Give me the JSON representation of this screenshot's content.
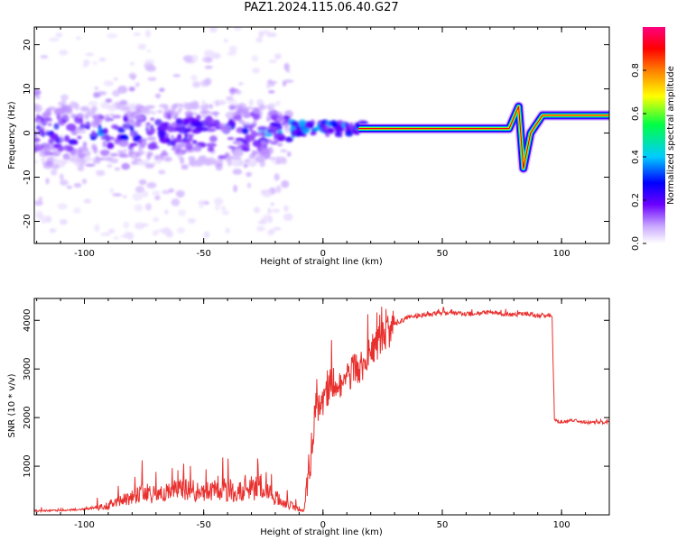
{
  "chart_title": "PAZ1.2024.115.06.40.G27",
  "chart_data": [
    {
      "type": "heatmap",
      "title": "PAZ1.2024.115.06.40.G27",
      "xlabel": "Height of straight line (km)",
      "ylabel": "Frequency (Hz)",
      "xlim": [
        -121,
        120
      ],
      "ylim": [
        -25,
        24
      ],
      "x_ticks": [
        -100,
        -50,
        0,
        50,
        100
      ],
      "y_ticks": [
        -20,
        -10,
        0,
        10,
        20
      ],
      "grid": false,
      "colorbar": {
        "label": "Normalized spectral amplitude",
        "range": [
          0,
          1
        ],
        "ticks": [
          "0.0",
          "0.2",
          "0.4",
          "0.6",
          "0.8"
        ],
        "colormap": [
          "#ffffff",
          "#c9a8ff",
          "#6b00ff",
          "#0000ff",
          "#00ccff",
          "#00ff44",
          "#ffff00",
          "#ff7f00",
          "#ff0000",
          "#ff0080"
        ]
      },
      "ridge": [
        {
          "x": 15,
          "y": 1.0
        },
        {
          "x": 78,
          "y": 1.0
        },
        {
          "x": 82,
          "y": 6.0
        },
        {
          "x": 84,
          "y": -8.0
        },
        {
          "x": 87,
          "y": 0.0
        },
        {
          "x": 92,
          "y": 4.0
        },
        {
          "x": 120,
          "y": 4.0
        }
      ]
    },
    {
      "type": "line",
      "xlabel": "Height of straight line (km)",
      "ylabel": "SNR (10 * v/v)",
      "xlim": [
        -121,
        120
      ],
      "ylim": [
        0,
        4450
      ],
      "x_ticks": [
        -100,
        -50,
        0,
        50,
        100
      ],
      "y_ticks": [
        1000,
        2000,
        3000,
        4000
      ],
      "color": "#e8302e",
      "series": [
        {
          "x": [
            -121,
            -110,
            -100,
            -95,
            -90,
            -85,
            -80,
            -75,
            -70,
            -65,
            -60,
            -55,
            -50,
            -45,
            -40,
            -35,
            -30,
            -25,
            -20,
            -15,
            -12,
            -10,
            -8,
            -5,
            -3,
            0,
            3,
            5,
            8,
            10,
            13,
            15,
            18,
            20,
            23,
            25,
            28,
            30,
            35,
            40,
            45,
            50,
            55,
            60,
            65,
            70,
            75,
            80,
            85,
            90,
            95,
            96,
            97,
            100,
            105,
            110,
            115,
            120
          ],
          "y": [
            80,
            90,
            120,
            150,
            200,
            280,
            380,
            450,
            420,
            480,
            520,
            500,
            450,
            500,
            480,
            510,
            520,
            600,
            350,
            230,
            150,
            100,
            90,
            1300,
            2200,
            2300,
            2600,
            2700,
            2550,
            2750,
            3050,
            3000,
            3150,
            3350,
            3550,
            3650,
            3800,
            3900,
            4050,
            4100,
            4120,
            4150,
            4150,
            4130,
            4150,
            4160,
            4130,
            4120,
            4130,
            4100,
            4100,
            4100,
            1950,
            1900,
            1950,
            1900,
            1900,
            1900
          ]
        }
      ]
    }
  ]
}
